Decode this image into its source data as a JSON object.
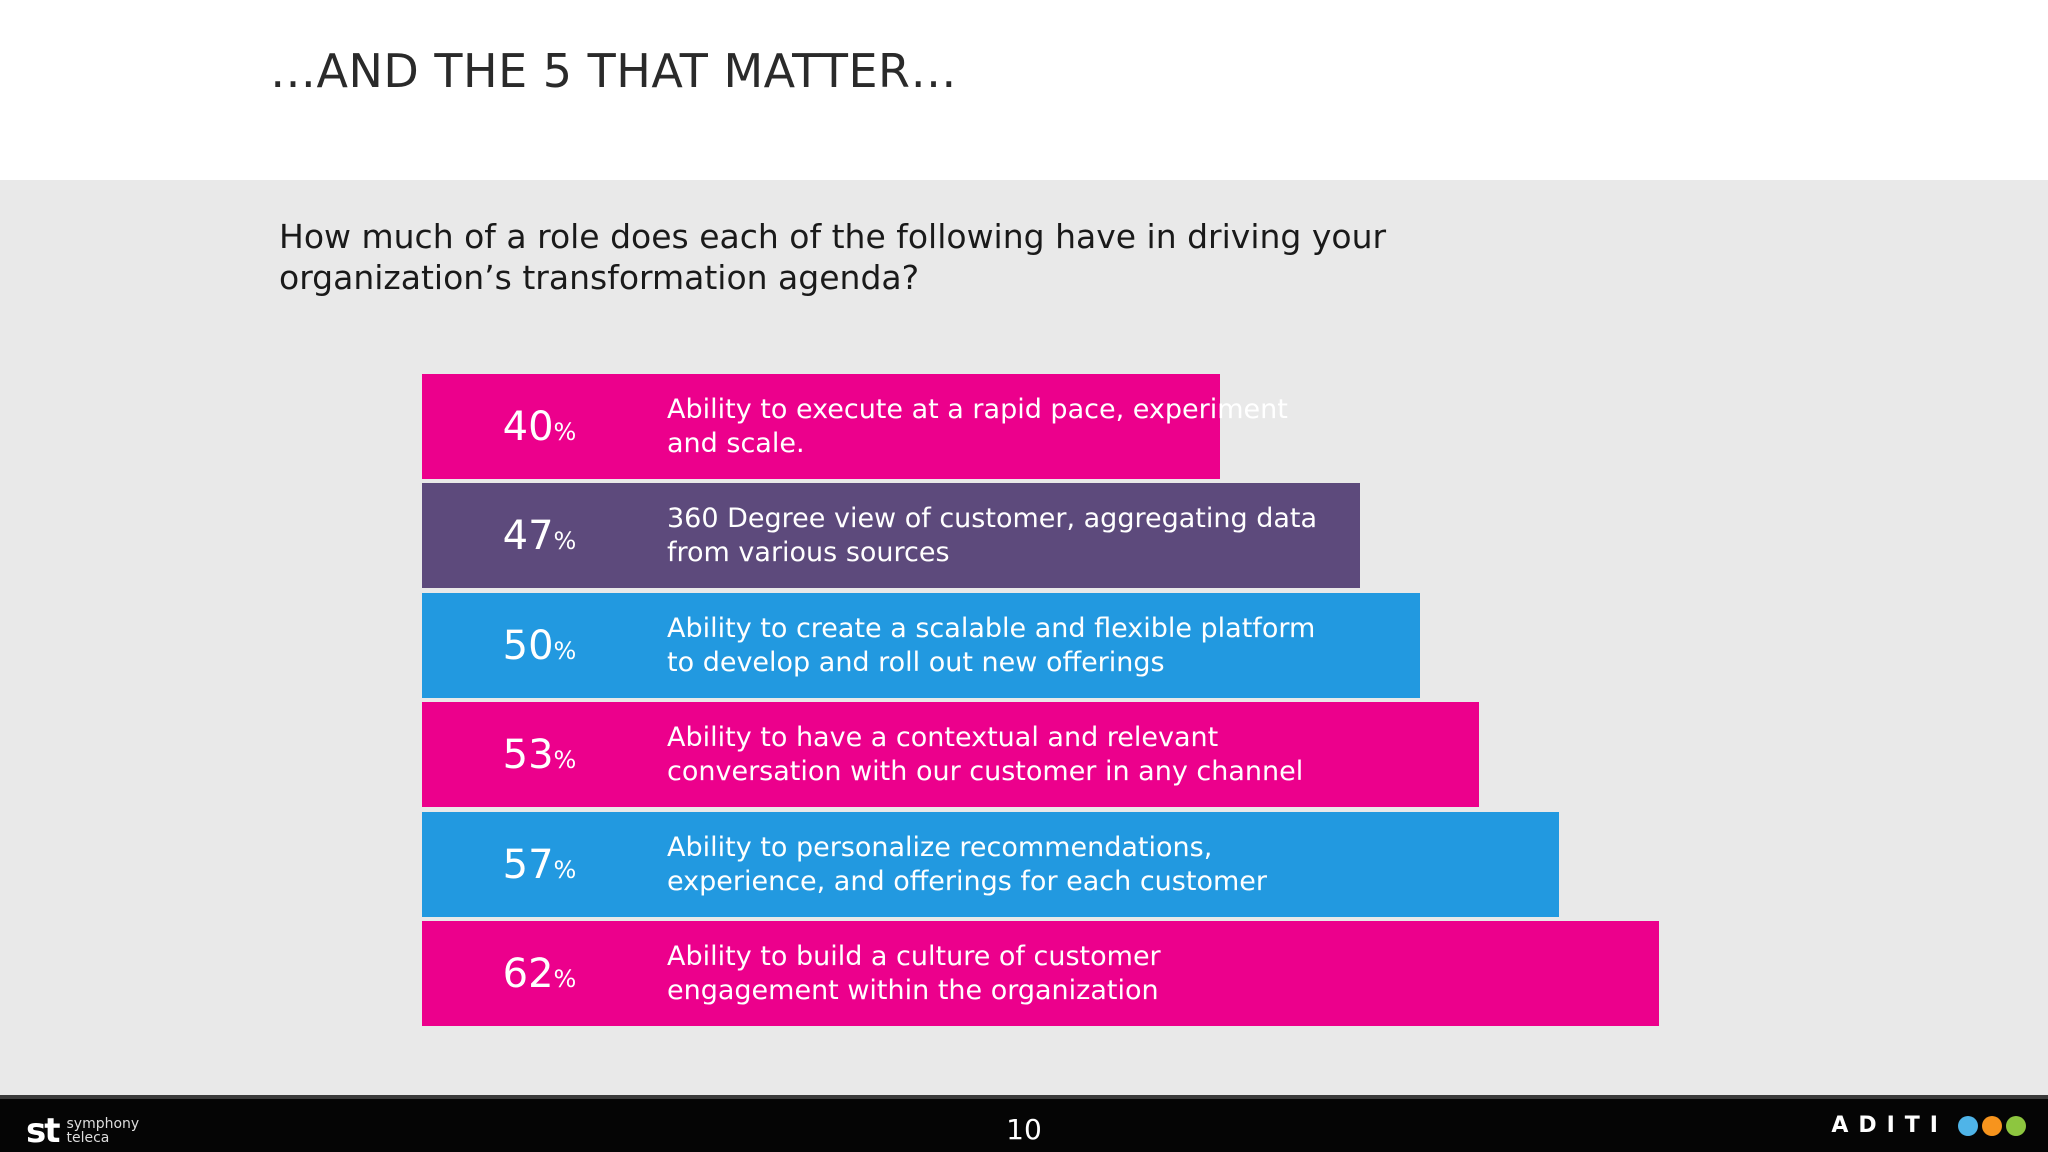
{
  "slide": {
    "title": "…AND THE 5 THAT MATTER…",
    "question": "How much of a role does each of the following have in driving your organization’s transformation agenda?",
    "page_number": "10"
  },
  "footer": {
    "left_logo_mark": "st",
    "left_logo_name_line1": "symphony",
    "left_logo_name_line2": "teleca",
    "right_logo_text": "ADITI"
  },
  "colors": {
    "magenta": "#ec008c",
    "purple": "#5d4a7c",
    "blue": "#2299e0",
    "dot_blue": "#4fb4e8",
    "dot_orange": "#f7941d",
    "dot_green": "#8dc63f"
  },
  "chart_data": {
    "type": "bar",
    "orientation": "horizontal",
    "title": "",
    "xlabel": "",
    "ylabel": "",
    "xlim": [
      0,
      100
    ],
    "unit": "%",
    "categories": [
      "Ability to execute at a rapid pace, experiment and scale.",
      "360 Degree view of customer, aggregating data from various sources",
      "Ability to create a scalable and flexible platform to develop and roll out new offerings",
      "Ability to have a contextual and relevant conversation with our customer in any channel",
      "Ability to personalize recommendations, experience, and offerings for each customer",
      "Ability to build a culture of customer engagement within the organization"
    ],
    "values": [
      40,
      47,
      50,
      53,
      57,
      62
    ],
    "bar_colors": [
      "#ec008c",
      "#5d4a7c",
      "#2299e0",
      "#ec008c",
      "#2299e0",
      "#ec008c"
    ],
    "grid": false,
    "legend": "none"
  }
}
